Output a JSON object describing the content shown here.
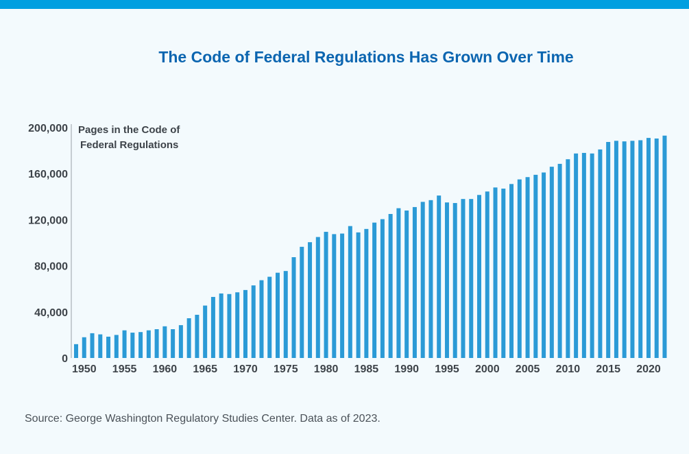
{
  "colors": {
    "accent_bar": "#009fe0",
    "title": "#0b65b0",
    "bars": "#2b9ad6",
    "axis_text": "#3d4349"
  },
  "chart_data": {
    "type": "bar",
    "title": "The Code of Federal Regulations Has Grown Over Time",
    "ylabel_lines": [
      "Pages in the Code of",
      "Federal Regulations"
    ],
    "xlabel": "",
    "ylim": [
      0,
      200000
    ],
    "yticks": [
      0,
      40000,
      80000,
      120000,
      160000,
      200000
    ],
    "ytick_labels": [
      "0",
      "40,000",
      "80,000",
      "120,000",
      "160,000",
      "200,000"
    ],
    "xtick_labels": [
      "1950",
      "1955",
      "1960",
      "1965",
      "1970",
      "1975",
      "1980",
      "1985",
      "1990",
      "1995",
      "2000",
      "2005",
      "2010",
      "2015",
      "2020"
    ],
    "categories": [
      1949,
      1950,
      1951,
      1952,
      1953,
      1954,
      1955,
      1956,
      1957,
      1958,
      1959,
      1960,
      1961,
      1962,
      1963,
      1964,
      1965,
      1966,
      1967,
      1968,
      1969,
      1970,
      1971,
      1972,
      1973,
      1974,
      1975,
      1976,
      1977,
      1978,
      1979,
      1980,
      1981,
      1982,
      1983,
      1984,
      1985,
      1986,
      1987,
      1988,
      1989,
      1990,
      1991,
      1992,
      1993,
      1994,
      1995,
      1996,
      1997,
      1998,
      1999,
      2000,
      2001,
      2002,
      2003,
      2004,
      2005,
      2006,
      2007,
      2008,
      2009,
      2010,
      2011,
      2012,
      2013,
      2014,
      2015,
      2016,
      2017,
      2018,
      2019,
      2020,
      2021,
      2022
    ],
    "values": [
      12000,
      18000,
      21500,
      20500,
      18500,
      20000,
      24000,
      22000,
      22500,
      24000,
      25000,
      27500,
      25000,
      28500,
      34500,
      37500,
      45500,
      53000,
      56000,
      55500,
      57000,
      59000,
      63000,
      67500,
      70500,
      74000,
      75500,
      87500,
      96500,
      100500,
      105000,
      109500,
      107500,
      108000,
      114500,
      109000,
      112000,
      117500,
      120500,
      125000,
      130000,
      128000,
      131000,
      135500,
      137000,
      141000,
      135000,
      134500,
      138000,
      138000,
      141500,
      144500,
      148000,
      147000,
      151000,
      155000,
      157000,
      159000,
      161000,
      166000,
      168500,
      172500,
      177500,
      178000,
      177500,
      181000,
      187500,
      188500,
      188000,
      188500,
      189000,
      191000,
      190500,
      193000
    ]
  },
  "source": "Source: George Washington Regulatory Studies Center. Data as of 2023."
}
